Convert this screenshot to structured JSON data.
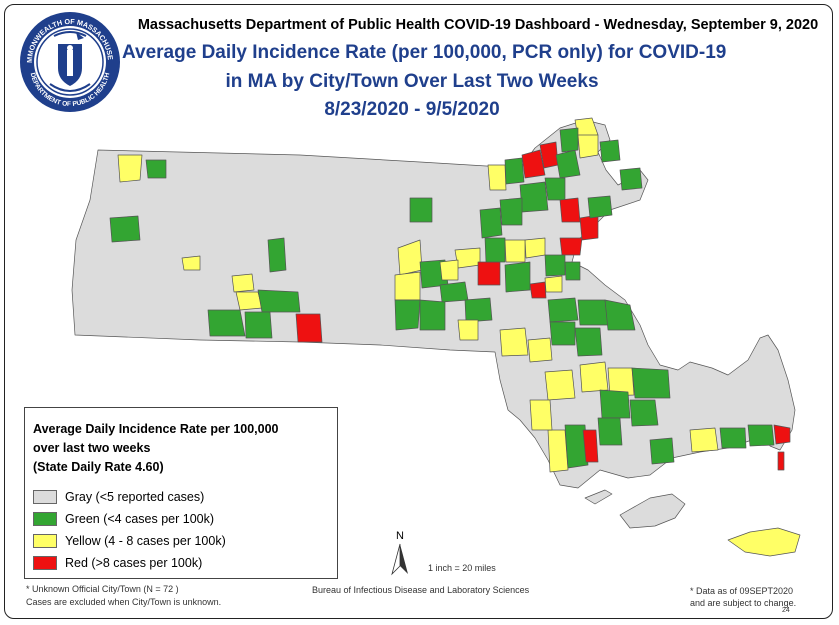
{
  "header": {
    "dashboard_line": "Massachusetts Department of Public Health COVID-19 Dashboard - Wednesday, September 9, 2020",
    "title_line1": "Average Daily Incidence Rate (per 100,000, PCR only) for COVID-19",
    "title_line2": "in MA by City/Town Over Last Two Weeks",
    "title_line3": "8/23/2020 - 9/5/2020"
  },
  "seal": {
    "text_top": "COMMONWEALTH OF MASSACHUSETTS",
    "text_bottom": "DEPARTMENT OF PUBLIC HEALTH"
  },
  "legend": {
    "title_line1": "Average Daily Incidence Rate per 100,000",
    "title_line2": "over last two weeks",
    "title_line3": "(State Daily Rate 4.60)",
    "items": [
      {
        "label": "Gray (<5 reported cases)",
        "color": "#dcdcdc"
      },
      {
        "label": "Green (<4 cases per 100k)",
        "color": "#33a532"
      },
      {
        "label": "Yellow (4 - 8 cases per 100k)",
        "color": "#ffff66"
      },
      {
        "label": "Red (>8 cases per 100k)",
        "color": "#ee1111"
      }
    ]
  },
  "north_arrow": {
    "label": "N"
  },
  "scale_text": "1 inch = 20 miles",
  "footer": {
    "unknown_line1": "* Unknown Official City/Town (N = 72 )",
    "unknown_line2": "Cases are excluded when City/Town is unknown.",
    "bureau": "Bureau of Infectious Disease and Laboratory Sciences",
    "data_note_line1": "* Data as of 09SEPT2020",
    "data_note_line2": "and are subject to change.",
    "page_number": "24"
  },
  "colors": {
    "gray": "#dcdcdc",
    "green": "#33a532",
    "yellow": "#ffff66",
    "red": "#ee1111",
    "title": "#1f3f8c"
  }
}
